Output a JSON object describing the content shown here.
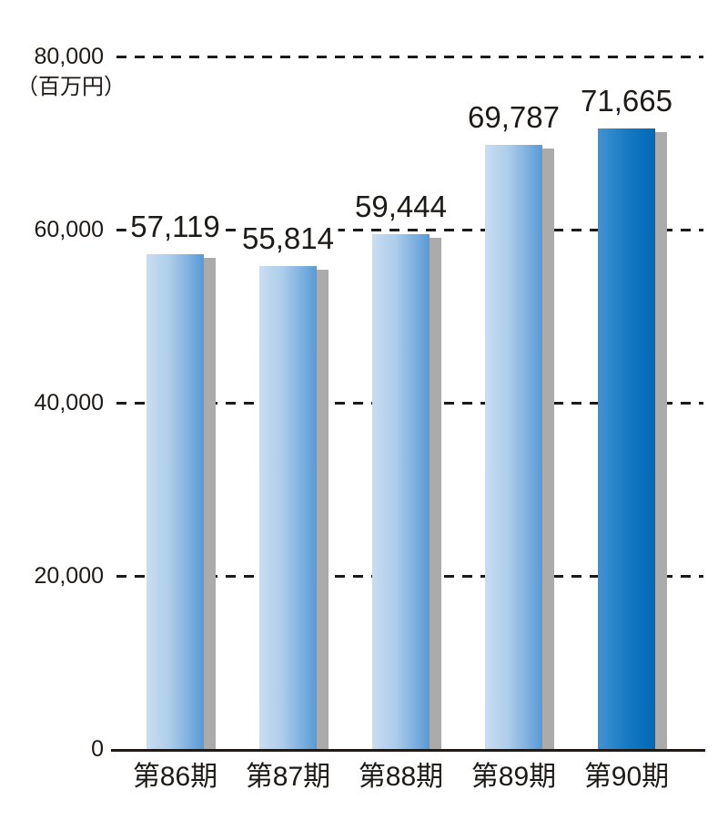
{
  "chart_data": {
    "type": "bar",
    "title": "",
    "unit_label": "（百万円）",
    "categories": [
      "第86期",
      "第87期",
      "第88期",
      "第89期",
      "第90期"
    ],
    "values": [
      57119,
      55814,
      59444,
      69787,
      71665
    ],
    "value_labels": [
      "57,119",
      "55,814",
      "59,444",
      "69,787",
      "71,665"
    ],
    "highlight_index": 4,
    "ylim": [
      0,
      80000
    ],
    "y_ticks": [
      {
        "value": 0,
        "label": "0"
      },
      {
        "value": 20000,
        "label": "20,000"
      },
      {
        "value": 40000,
        "label": "40,000"
      },
      {
        "value": 60000,
        "label": "60,000"
      },
      {
        "value": 80000,
        "label": "80,000"
      }
    ],
    "grid": "horizontal dashed lines at each y tick, drawn behind bars",
    "legend": "none",
    "colors": {
      "bar_light_gradient_start": "#c9ddf1",
      "bar_light_gradient_end": "#579ad7",
      "bar_dark_gradient_start": "#4292d3",
      "bar_dark_gradient_end": "#0068b7",
      "bar_shadow": "#ababab",
      "text": "#1e1a17",
      "axis_line": "#1e1a17",
      "background": "#ffffff"
    }
  }
}
